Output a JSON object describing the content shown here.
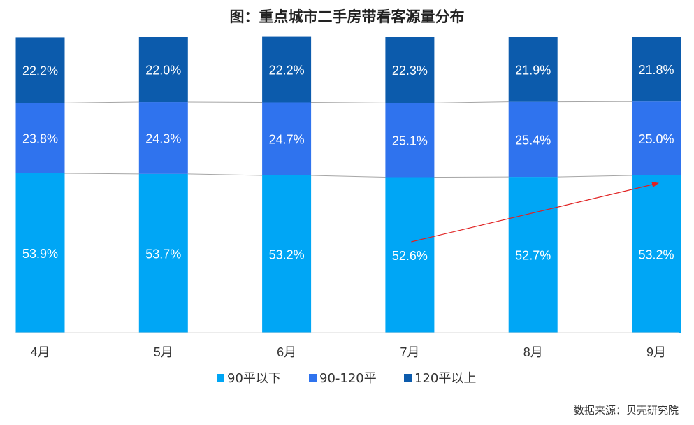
{
  "source": "数据来源：贝壳研究院",
  "chart_data": {
    "type": "bar",
    "stacked": true,
    "title": "图：重点城市二手房带看客源量分布",
    "categories": [
      "4月",
      "5月",
      "6月",
      "7月",
      "8月",
      "9月"
    ],
    "series": [
      {
        "name": "90平以下",
        "color": "#00A6F5",
        "values": [
          53.9,
          53.7,
          53.2,
          52.6,
          52.7,
          53.2
        ],
        "labels": [
          "53.9%",
          "53.7%",
          "53.2%",
          "52.6%",
          "52.7%",
          "53.2%"
        ]
      },
      {
        "name": "90-120平",
        "color": "#2F73EE",
        "values": [
          23.8,
          24.3,
          24.7,
          25.1,
          25.4,
          25.0
        ],
        "labels": [
          "23.8%",
          "24.3%",
          "24.7%",
          "25.1%",
          "25.4%",
          "25.0%"
        ]
      },
      {
        "name": "120平以上",
        "color": "#0C5BAC",
        "values": [
          22.2,
          22.0,
          22.2,
          22.3,
          21.9,
          21.8
        ],
        "labels": [
          "22.2%",
          "22.0%",
          "22.2%",
          "22.3%",
          "21.9%",
          "21.8%"
        ]
      }
    ],
    "ylim": [
      0,
      100
    ],
    "legend_position": "bottom",
    "grid": false,
    "series_lines": true,
    "annotations": [
      {
        "type": "arrow",
        "color": "#E02020",
        "from_category": "7月",
        "to_category": "9月",
        "description": "upward trend arrow"
      }
    ]
  }
}
